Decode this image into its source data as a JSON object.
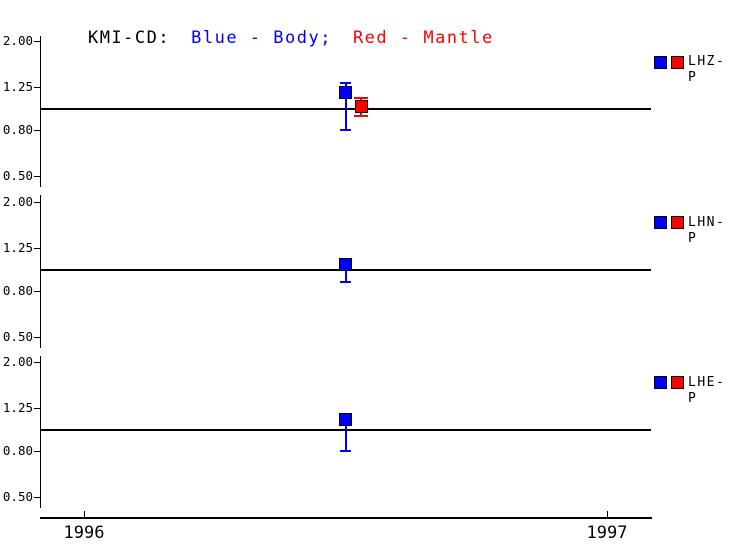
{
  "title": {
    "station": "KMI-CD:",
    "blue": "Blue - Body;",
    "red": "Red - Mantle"
  },
  "colors": {
    "body": "#0000ff",
    "mantle": "#ff0000",
    "axis": "#000000"
  },
  "y_axis": {
    "tick_labels": [
      "2.00",
      "1.25",
      "0.80",
      "0.50"
    ]
  },
  "x_axis": {
    "ticks": [
      {
        "label": "1996",
        "x": 1996
      },
      {
        "label": "1997",
        "x": 1997
      }
    ]
  },
  "chart_data": {
    "type": "scatter",
    "title": "KMI-CD: Blue - Body; Red - Mantle",
    "y_scale": "log",
    "ylim": [
      0.5,
      2.0
    ],
    "xlim": [
      1995.92,
      1997.09
    ],
    "y_ticks": [
      2.0,
      1.25,
      0.8,
      0.5
    ],
    "reference_line_y": 1.0,
    "legend_position": "right",
    "panels": [
      {
        "label": "LHZ-P",
        "series": [
          {
            "name": "Body",
            "color_key": "body",
            "x": 1996.5,
            "y": 1.18,
            "y_lo": 0.8,
            "y_hi": 1.31
          },
          {
            "name": "Mantle",
            "color_key": "mantle",
            "x": 1996.53,
            "y": 1.02,
            "y_lo": 0.93,
            "y_hi": 1.13
          }
        ]
      },
      {
        "label": "LHN-P",
        "series": [
          {
            "name": "Body",
            "color_key": "body",
            "x": 1996.5,
            "y": 1.05,
            "y_lo": 0.88,
            "y_hi": 1.13
          }
        ]
      },
      {
        "label": "LHE-P",
        "series": [
          {
            "name": "Body",
            "color_key": "body",
            "x": 1996.5,
            "y": 1.11,
            "y_lo": 0.8,
            "y_hi": 1.19
          }
        ]
      }
    ]
  }
}
